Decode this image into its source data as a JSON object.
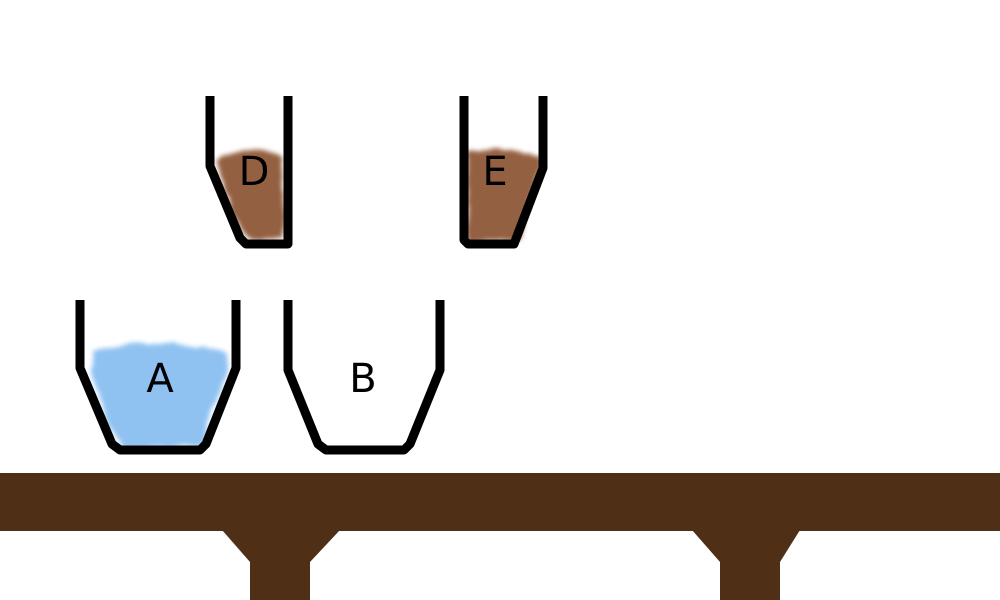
{
  "colors": {
    "background": "#ffffff",
    "table": "#4f2f16",
    "outline": "#000000",
    "water": "#7db8ef",
    "brown_liquid": "#8b5232"
  },
  "containers": [
    {
      "label": "D",
      "contents": "brown-liquid",
      "color": "#8b5232"
    },
    {
      "label": "E",
      "contents": "brown-liquid",
      "color": "#8b5232"
    },
    {
      "label": "A",
      "contents": "water",
      "color": "#7db8ef"
    },
    {
      "label": "B",
      "contents": "empty",
      "color": ""
    }
  ]
}
